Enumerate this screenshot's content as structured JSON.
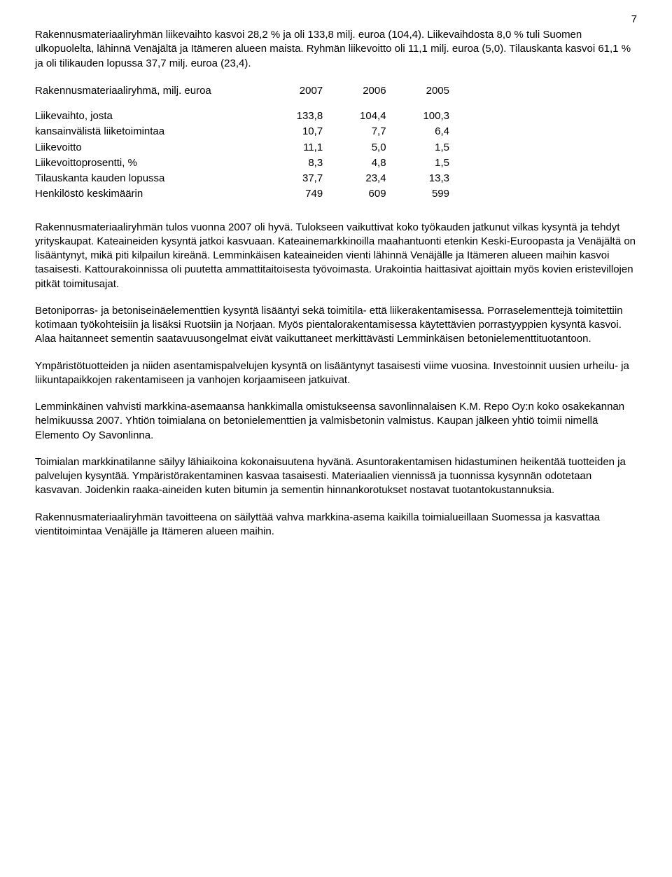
{
  "page_number": "7",
  "para1": "Rakennusmateriaaliryhmän liikevaihto kasvoi 28,2 % ja oli 133,8 milj. euroa (104,4). Liikevaihdosta 8,0 % tuli Suomen ulkopuolelta, lähinnä Venäjältä ja Itämeren alueen maista. Ryhmän liikevoitto oli 11,1 milj. euroa (5,0). Tilauskanta kasvoi 61,1 % ja oli tilikauden lopussa 37,7 milj. euroa (23,4).",
  "table": {
    "header_label": "Rakennusmateriaaliryhmä, milj. euroa",
    "years": [
      "2007",
      "2006",
      "2005"
    ],
    "rows": [
      {
        "label": "Liikevaihto, josta",
        "v": [
          "133,8",
          "104,4",
          "100,3"
        ]
      },
      {
        "label": "kansainvälistä liiketoimintaa",
        "v": [
          "10,7",
          "7,7",
          "6,4"
        ]
      },
      {
        "label": "Liikevoitto",
        "v": [
          "11,1",
          "5,0",
          "1,5"
        ]
      },
      {
        "label": "Liikevoittoprosentti, %",
        "v": [
          "8,3",
          "4,8",
          "1,5"
        ]
      },
      {
        "label": "Tilauskanta kauden lopussa",
        "v": [
          "37,7",
          "23,4",
          "13,3"
        ]
      },
      {
        "label": "Henkilöstö keskimäärin",
        "v": [
          "749",
          "609",
          "599"
        ]
      }
    ]
  },
  "para2": "Rakennusmateriaaliryhmän tulos vuonna 2007 oli hyvä. Tulokseen vaikuttivat koko työkauden jatkunut vilkas kysyntä ja tehdyt yrityskaupat. Kateaineiden kysyntä jatkoi kasvuaan. Kateainemarkkinoilla maahantuonti etenkin Keski-Euroopasta ja Venäjältä on lisääntynyt, mikä piti kilpailun kireänä. Lemminkäisen kateaineiden vienti lähinnä Venäjälle ja Itämeren alueen maihin kasvoi tasaisesti. Kattourakoinnissa oli puutetta ammattitaitoisesta työvoimasta. Urakointia haittasivat ajoittain myös kovien eristevillojen pitkät toimitusajat.",
  "para3": "Betoniporras- ja betoniseinäelementtien kysyntä lisääntyi sekä toimitila- että liikerakentamisessa. Porraselementtejä toimitettiin kotimaan työkohteisiin ja lisäksi Ruotsiin ja Norjaan. Myös pientalorakentamisessa käytettävien porrastyyppien kysyntä kasvoi. Alaa haitanneet sementin saatavuusongelmat eivät vaikuttaneet merkittävästi Lemminkäisen betonielementtituotantoon.",
  "para4": "Ympäristötuotteiden ja niiden asentamispalvelujen kysyntä on lisääntynyt tasaisesti viime vuosina. Investoinnit uusien urheilu- ja liikuntapaikkojen rakentamiseen ja vanhojen korjaamiseen jatkuivat.",
  "para5": "Lemminkäinen vahvisti markkina-asemaansa hankkimalla omistukseensa savonlinnalaisen K.M. Repo Oy:n koko osakekannan helmikuussa 2007. Yhtiön toimialana on betonielementtien ja valmisbetonin valmistus. Kaupan jälkeen yhtiö toimii nimellä Elemento Oy Savonlinna.",
  "para6": "Toimialan markkinatilanne säilyy lähiaikoina kokonaisuutena hyvänä. Asuntorakentamisen hidastuminen heikentää tuotteiden ja palvelujen kysyntää. Ympäristörakentaminen kasvaa tasaisesti. Materiaalien viennissä ja tuonnissa kysynnän odotetaan kasvavan. Joidenkin raaka-aineiden kuten bitumin ja sementin hinnankorotukset nostavat tuotantokustannuksia.",
  "para7": "Rakennusmateriaaliryhmän tavoitteena on säilyttää vahva markkina-asema kaikilla toimialueillaan Suomessa ja kasvattaa vientitoimintaa Venäjälle ja Itämeren alueen maihin."
}
